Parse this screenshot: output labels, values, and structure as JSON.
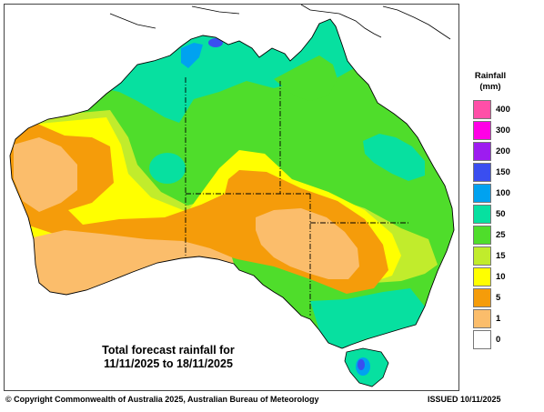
{
  "map": {
    "caption_line1": "Total forecast rainfall for",
    "caption_line2": "11/11/2025 to 18/11/2025",
    "colors": {
      "mm0": "#ffffff",
      "mm1": "#fbbd6b",
      "mm5": "#f59c0a",
      "mm10": "#ffff00",
      "mm15": "#c1ec2c",
      "mm25": "#4fdd2b",
      "mm50": "#07e0a0",
      "mm100": "#00a2f0",
      "mm150": "#3a4ef0",
      "mm200": "#9d1cf0",
      "mm300": "#ff00e6",
      "mm400": "#ff4fa8"
    }
  },
  "legend": {
    "title_line1": "Rainfall",
    "title_line2": "(mm)",
    "classes": [
      {
        "label": "400",
        "color": "#ff4fa8"
      },
      {
        "label": "300",
        "color": "#ff00e6"
      },
      {
        "label": "200",
        "color": "#9d1cf0"
      },
      {
        "label": "150",
        "color": "#3a4ef0"
      },
      {
        "label": "100",
        "color": "#00a2f0"
      },
      {
        "label": "50",
        "color": "#07e0a0"
      },
      {
        "label": "25",
        "color": "#4fdd2b"
      },
      {
        "label": "15",
        "color": "#c1ec2c"
      },
      {
        "label": "10",
        "color": "#ffff00"
      },
      {
        "label": "5",
        "color": "#f59c0a"
      },
      {
        "label": "1",
        "color": "#fbbd6b"
      },
      {
        "label": "0",
        "color": "#ffffff"
      }
    ]
  },
  "footer": {
    "copyright": "© Copyright Commonwealth of Australia 2025, Australian Bureau of Meteorology",
    "issued": "ISSUED 10/11/2025"
  }
}
